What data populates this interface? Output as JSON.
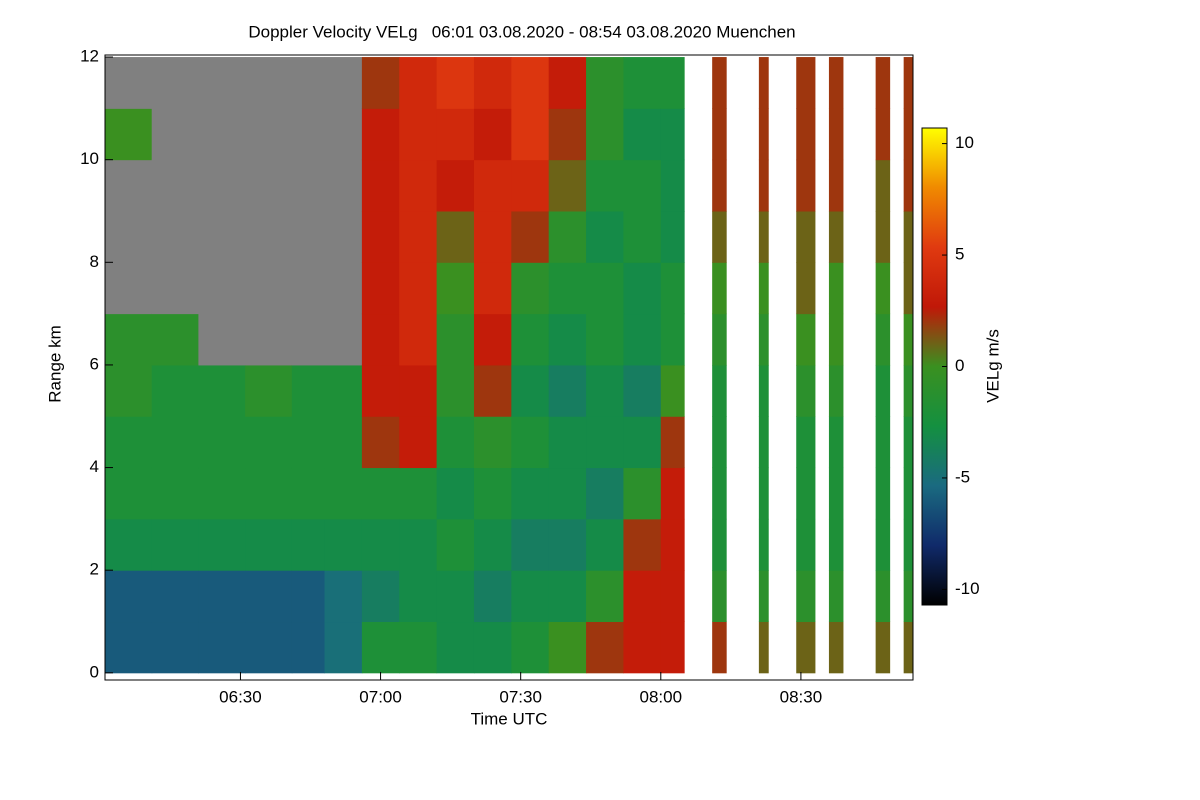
{
  "chart_data": {
    "type": "heatmap",
    "title": "Doppler Velocity VELg   06:01 03.08.2020 - 08:54 03.08.2020 Muenchen",
    "x_label": "Time UTC",
    "y_label": "Range km",
    "colorbar_label": "VELg m/s",
    "xbins": [
      361,
      371,
      381,
      391,
      401,
      408,
      416,
      424,
      432,
      440,
      448,
      456,
      464,
      472,
      480,
      485,
      491,
      494,
      501,
      503,
      509,
      513,
      516,
      519,
      526,
      529,
      532,
      534
    ],
    "ybins": [
      0,
      1,
      2,
      3,
      4,
      5,
      6,
      7,
      8,
      9,
      10,
      11,
      12
    ],
    "z": [
      [
        -6,
        -6,
        -6,
        -6,
        -6,
        -5,
        -2,
        -2,
        -3,
        -3,
        -2,
        0,
        2,
        3,
        3,
        null,
        2,
        null,
        1,
        null,
        1,
        null,
        1,
        null,
        1,
        null,
        1
      ],
      [
        -6,
        -6,
        -6,
        -6,
        -6,
        -5,
        -4,
        -3,
        -3,
        -4,
        -3,
        -3,
        -1,
        3,
        3,
        null,
        -1,
        null,
        -1,
        null,
        -1,
        null,
        -1,
        null,
        -1,
        null,
        -1
      ],
      [
        -3,
        -3,
        -3,
        -3,
        -3,
        -3,
        -3,
        -3,
        -2,
        -3,
        -4,
        -4,
        -3,
        2,
        3,
        null,
        -2,
        null,
        -2,
        null,
        -2,
        null,
        -2,
        null,
        -2,
        null,
        -2
      ],
      [
        -2,
        -2,
        -2,
        -2,
        -2,
        -2,
        -2,
        -2,
        -3,
        -2,
        -3,
        -3,
        -4,
        -1,
        3,
        null,
        -2,
        null,
        -2,
        null,
        -2,
        null,
        -2,
        null,
        -2,
        null,
        -2
      ],
      [
        -2,
        -2,
        -2,
        -2,
        -2,
        -2,
        2,
        3,
        -2,
        -1,
        -2,
        -3,
        -3,
        -3,
        2,
        null,
        -2,
        null,
        -2,
        null,
        -2,
        null,
        -2,
        null,
        -2,
        null,
        -2
      ],
      [
        -1,
        -2,
        -2,
        -1,
        -2,
        -2,
        3,
        3,
        -1,
        2,
        -3,
        -4,
        -3,
        -4,
        0,
        null,
        -2,
        null,
        -2,
        null,
        -1,
        null,
        -1,
        null,
        -2,
        null,
        -1
      ],
      [
        -1,
        -1,
        null,
        null,
        null,
        null,
        3,
        4,
        -1,
        3,
        -2,
        -3,
        -2,
        -3,
        -2,
        null,
        -1,
        null,
        -1,
        null,
        0,
        null,
        0,
        null,
        -1,
        null,
        0
      ],
      [
        null,
        null,
        null,
        null,
        null,
        null,
        3,
        4,
        0,
        4,
        -1,
        -2,
        -2,
        -3,
        -2,
        null,
        0,
        null,
        0,
        null,
        1,
        null,
        0,
        null,
        0,
        null,
        1
      ],
      [
        null,
        null,
        null,
        null,
        null,
        null,
        3,
        4,
        1,
        4,
        2,
        -1,
        -3,
        -2,
        -3,
        null,
        1,
        null,
        1,
        null,
        1,
        null,
        1,
        null,
        1,
        null,
        1
      ],
      [
        null,
        null,
        null,
        null,
        null,
        null,
        3,
        4,
        3,
        4,
        4,
        1,
        -2,
        -2,
        -3,
        null,
        2,
        null,
        2,
        null,
        2,
        null,
        2,
        null,
        1,
        null,
        2
      ],
      [
        0,
        null,
        null,
        null,
        null,
        null,
        3,
        4,
        4,
        3,
        5,
        2,
        -1,
        -3,
        -3,
        null,
        2,
        null,
        2,
        null,
        2,
        null,
        2,
        null,
        2,
        null,
        2
      ],
      [
        null,
        null,
        null,
        null,
        null,
        null,
        2,
        4,
        5,
        4,
        5,
        3,
        -1,
        -2,
        -2,
        null,
        2,
        null,
        2,
        null,
        2,
        null,
        2,
        null,
        2,
        null,
        2
      ]
    ],
    "null_color": "#808080",
    "colorscale": [
      "#000000",
      "#102a6a",
      "#1a6a80",
      "#149040",
      "#3a9020",
      "#c01808",
      "#e03a10",
      "#f08a00",
      "#ffff00"
    ],
    "xlim": [
      361,
      534
    ],
    "ylim": [
      -0.14,
      12.04
    ],
    "zlim": [
      -10.7,
      10.7
    ],
    "xticks": [
      {
        "value": 390,
        "label": "06:30"
      },
      {
        "value": 420,
        "label": "07:00"
      },
      {
        "value": 450,
        "label": "07:30"
      },
      {
        "value": 480,
        "label": "08:00"
      },
      {
        "value": 510,
        "label": "08:30"
      }
    ],
    "yticks": [
      0,
      2,
      4,
      6,
      8,
      10,
      12
    ],
    "zticks": [
      -10,
      -5,
      0,
      5,
      10
    ]
  }
}
